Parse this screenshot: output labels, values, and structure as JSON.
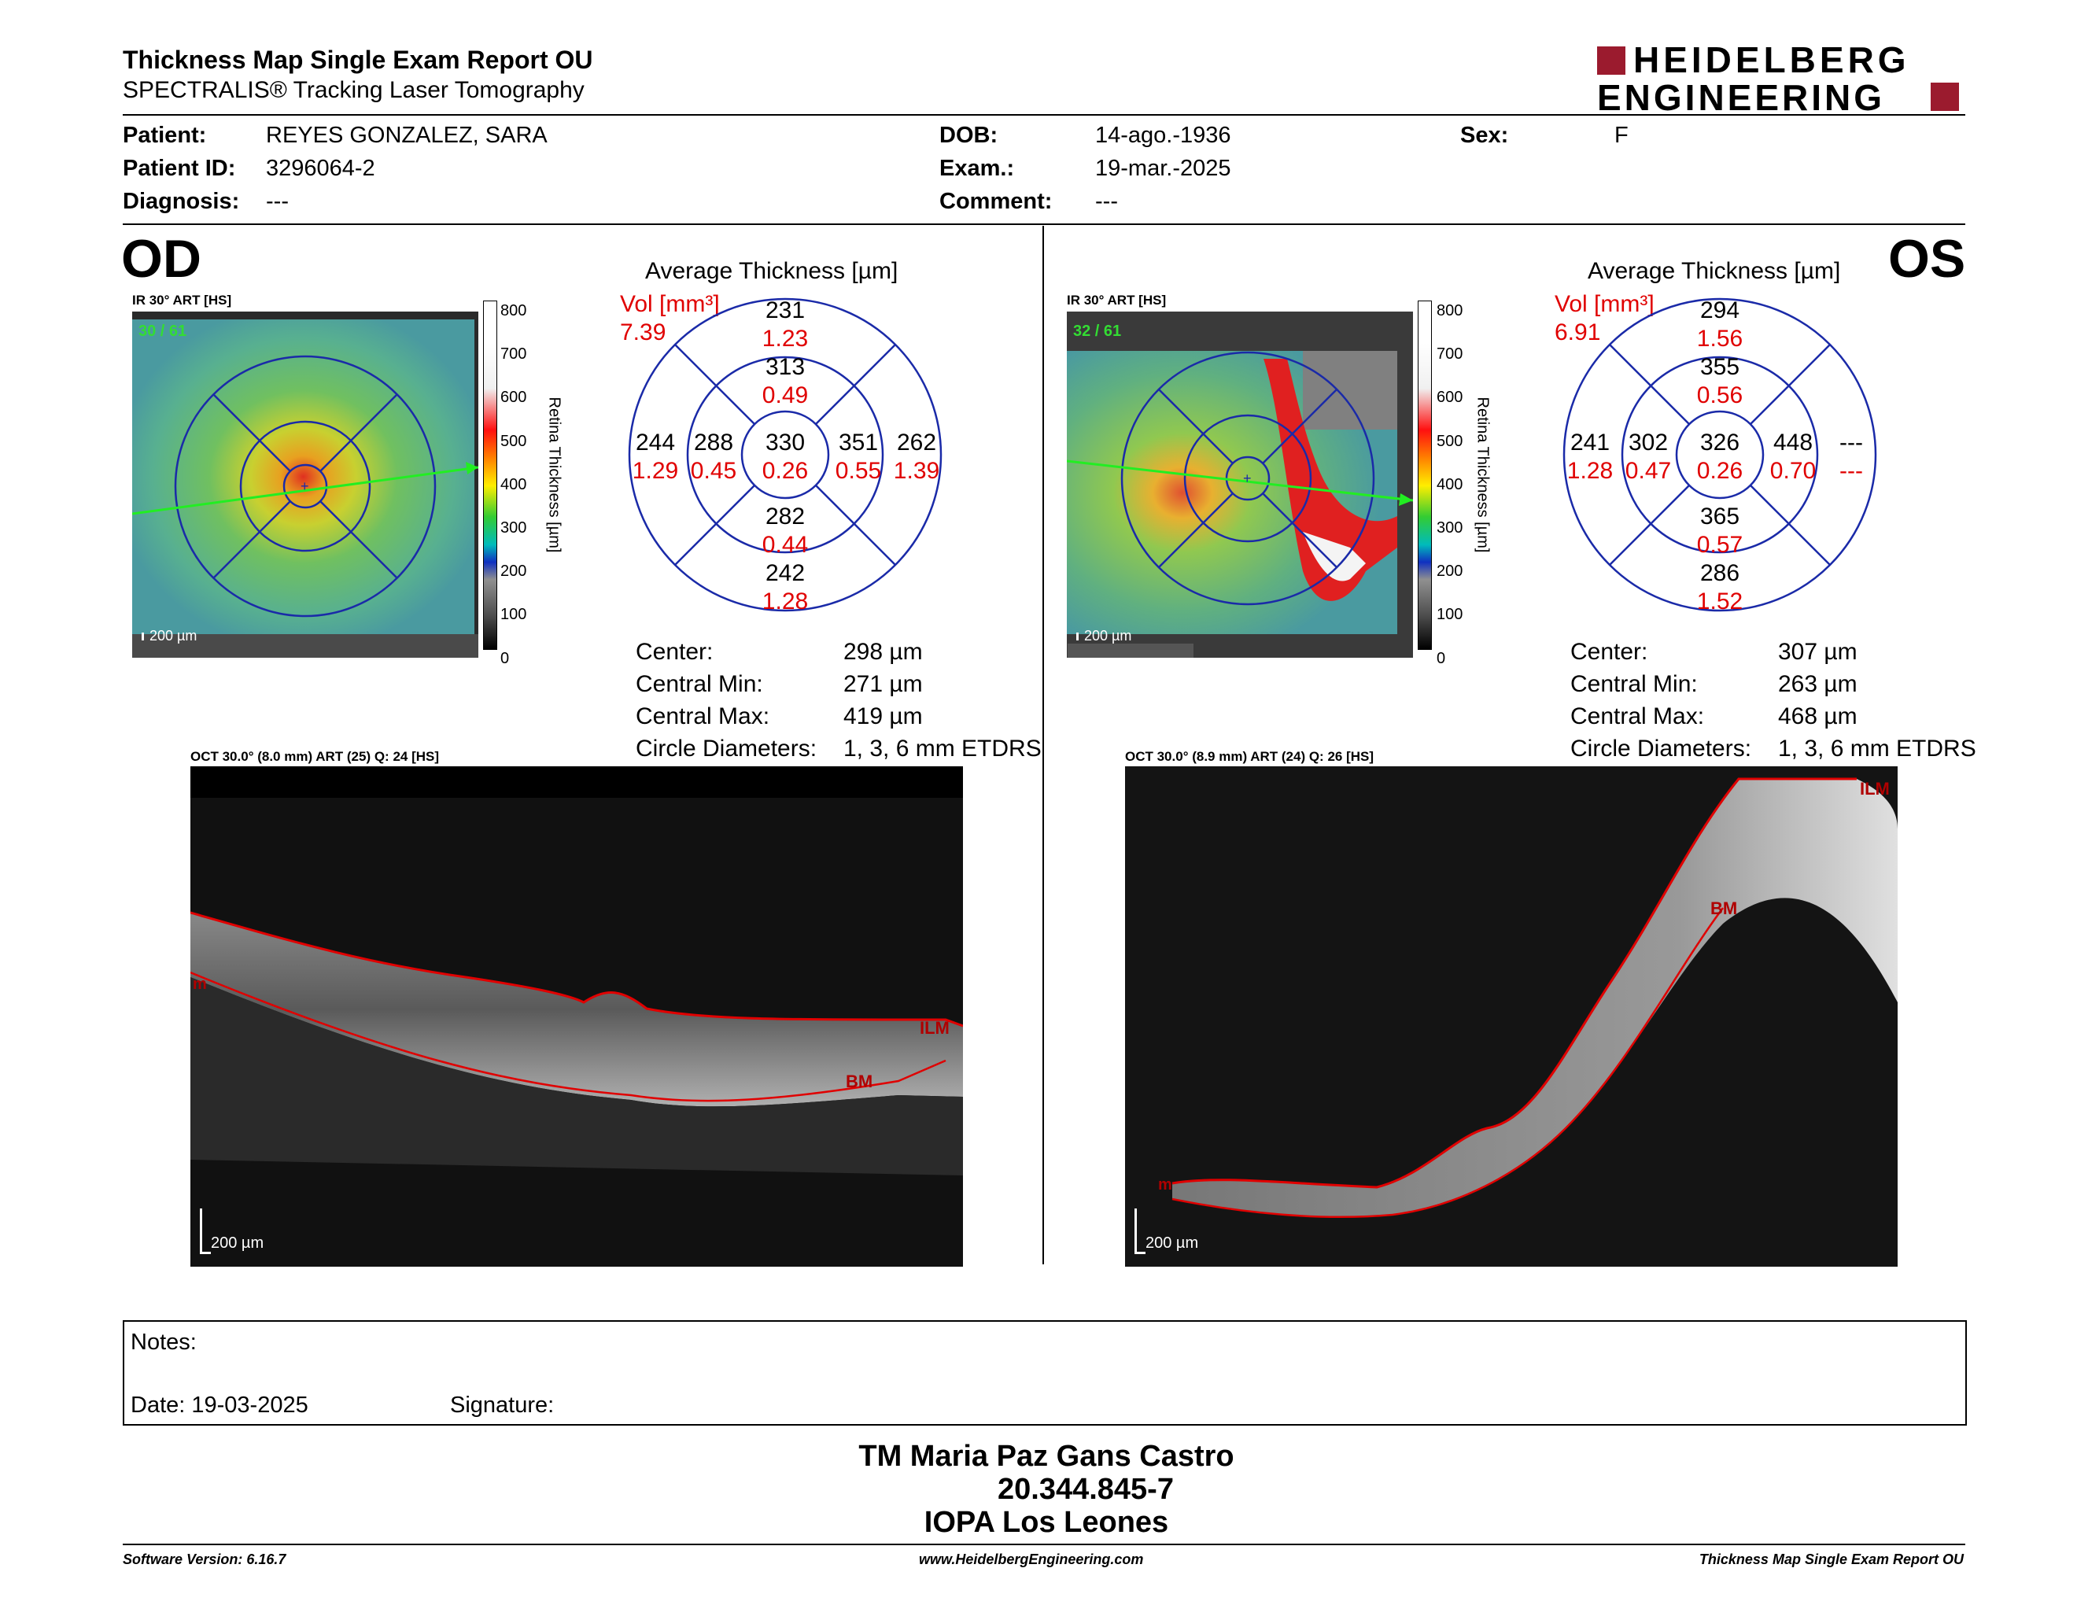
{
  "header": {
    "title": "Thickness Map Single Exam Report OU",
    "subtitle": "SPECTRALIS® Tracking Laser Tomography",
    "logo_line1": "HEIDELBERG",
    "logo_line2": "ENGINEERING"
  },
  "patient": {
    "name_label": "Patient:",
    "name": "REYES GONZALEZ, SARA",
    "id_label": "Patient ID:",
    "id": "3296064-2",
    "diagnosis_label": "Diagnosis:",
    "diagnosis": "---",
    "dob_label": "DOB:",
    "dob": "14-ago.-1936",
    "exam_label": "Exam.:",
    "exam": "19-mar.-2025",
    "comment_label": "Comment:",
    "comment": "---",
    "sex_label": "Sex:",
    "sex": "F"
  },
  "od": {
    "eye": "OD",
    "ir_label": "IR 30° ART [HS]",
    "frames": "30 / 61",
    "scale": "200 µm",
    "colorbar_ticks": [
      "800",
      "700",
      "600",
      "500",
      "400",
      "300",
      "200",
      "100",
      "0"
    ],
    "colorbar_title": "Retina Thickness [µm]",
    "avg_title": "Average Thickness [µm]",
    "vol_label": "Vol [mm³]",
    "vol": "7.39",
    "grid": {
      "center": {
        "t": "330",
        "v": "0.26"
      },
      "inner_sup": {
        "t": "313",
        "v": "0.49"
      },
      "inner_inf": {
        "t": "282",
        "v": "0.44"
      },
      "inner_left": {
        "t": "288",
        "v": "0.45"
      },
      "inner_right": {
        "t": "351",
        "v": "0.55"
      },
      "outer_sup": {
        "t": "231",
        "v": "1.23"
      },
      "outer_inf": {
        "t": "242",
        "v": "1.28"
      },
      "outer_left": {
        "t": "244",
        "v": "1.29"
      },
      "outer_right": {
        "t": "262",
        "v": "1.39"
      }
    },
    "stats": [
      {
        "label": "Center:",
        "value": "298 µm"
      },
      {
        "label": "Central Min:",
        "value": "271 µm"
      },
      {
        "label": "Central Max:",
        "value": "419 µm"
      },
      {
        "label": "Circle Diameters:",
        "value": "1, 3, 6 mm ETDRS"
      }
    ],
    "oct_label": "OCT 30.0° (8.0 mm) ART (25) Q: 24 [HS]",
    "oct_scale": "200 µm",
    "ilm": "ILM",
    "bm": "BM",
    "m": "m"
  },
  "os": {
    "eye": "OS",
    "ir_label": "IR 30° ART [HS]",
    "frames": "32 / 61",
    "scale": "200 µm",
    "colorbar_ticks": [
      "800",
      "700",
      "600",
      "500",
      "400",
      "300",
      "200",
      "100",
      "0"
    ],
    "colorbar_title": "Retina Thickness [µm]",
    "avg_title": "Average Thickness [µm]",
    "vol_label": "Vol [mm³]",
    "vol": "6.91",
    "grid": {
      "center": {
        "t": "326",
        "v": "0.26"
      },
      "inner_sup": {
        "t": "355",
        "v": "0.56"
      },
      "inner_inf": {
        "t": "365",
        "v": "0.57"
      },
      "inner_left": {
        "t": "302",
        "v": "0.47"
      },
      "inner_right": {
        "t": "448",
        "v": "0.70"
      },
      "outer_sup": {
        "t": "294",
        "v": "1.56"
      },
      "outer_inf": {
        "t": "286",
        "v": "1.52"
      },
      "outer_left": {
        "t": "241",
        "v": "1.28"
      },
      "outer_right": {
        "t": "---",
        "v": "---"
      }
    },
    "stats": [
      {
        "label": "Center:",
        "value": "307 µm"
      },
      {
        "label": "Central Min:",
        "value": "263 µm"
      },
      {
        "label": "Central Max:",
        "value": "468 µm"
      },
      {
        "label": "Circle Diameters:",
        "value": "1, 3, 6 mm ETDRS"
      }
    ],
    "oct_label": "OCT 30.0° (8.9 mm) ART (24) Q: 26 [HS]",
    "oct_scale": "200 µm",
    "ilm": "ILM",
    "bm": "BM",
    "m": "m"
  },
  "notes": {
    "label": "Notes:",
    "date": "Date: 19-03-2025",
    "signature": "Signature:"
  },
  "signer": {
    "name": "TM Maria Paz Gans Castro",
    "rut": "20.344.845-7",
    "org": "IOPA Los Leones"
  },
  "footer": {
    "software": "Software Version: 6.16.7",
    "url": "www.HeidelbergEngineering.com",
    "report": "Thickness Map Single Exam Report OU"
  },
  "colors": {
    "red": "#e00000",
    "grid_blue": "#1a2aa8",
    "logo_red": "#9b1b2e"
  }
}
